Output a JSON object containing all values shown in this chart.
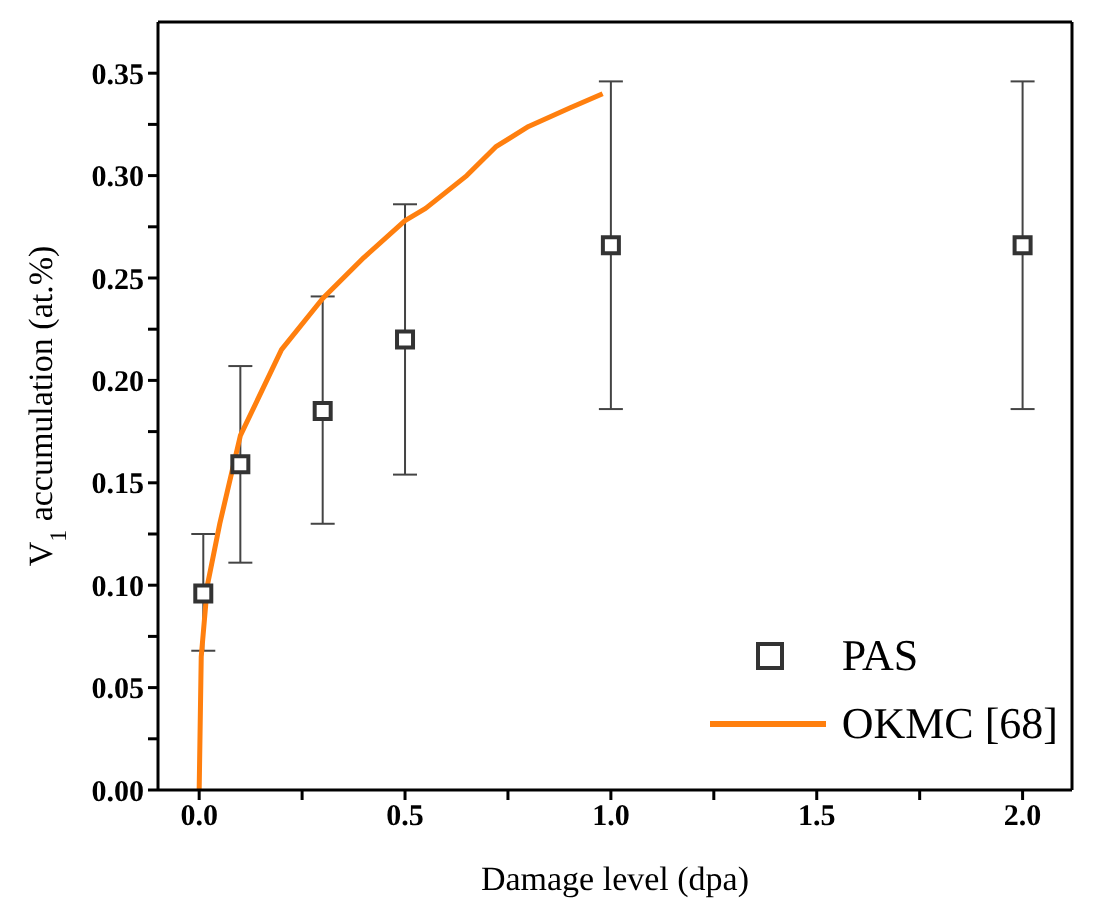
{
  "chart_data": {
    "type": "scatter",
    "xlabel": "Damage level (dpa)",
    "ylabel": "V$_{1}$ accumulation (at.%)",
    "xlim": [
      -0.1,
      2.12
    ],
    "xticks": [
      {
        "value": 0,
        "label": "0.0"
      },
      {
        "value": 0.25,
        "label": null
      },
      {
        "value": 0.5,
        "label": "0.5"
      },
      {
        "value": 0.75,
        "label": null
      },
      {
        "value": 1,
        "label": "1.0"
      },
      {
        "value": 1.25,
        "label": null
      },
      {
        "value": 1.5,
        "label": "1.5"
      },
      {
        "value": 1.75,
        "label": null
      },
      {
        "value": 2,
        "label": "2.0"
      }
    ],
    "ylim": [
      0,
      0.375
    ],
    "yticks": [
      {
        "value": 0,
        "label": "0.00"
      },
      {
        "value": 0.025,
        "label": null
      },
      {
        "value": 0.05,
        "label": "0.05"
      },
      {
        "value": 0.075,
        "label": null
      },
      {
        "value": 0.1,
        "label": "0.10"
      },
      {
        "value": 0.125,
        "label": null
      },
      {
        "value": 0.15,
        "label": "0.15"
      },
      {
        "value": 0.175,
        "label": null
      },
      {
        "value": 0.2,
        "label": "0.20"
      },
      {
        "value": 0.225,
        "label": null
      },
      {
        "value": 0.25,
        "label": "0.25"
      },
      {
        "value": 0.275,
        "label": null
      },
      {
        "value": 0.3,
        "label": "0.30"
      },
      {
        "value": 0.325,
        "label": null
      },
      {
        "value": 0.35,
        "label": "0.35"
      }
    ],
    "legend": "bottom right",
    "grid": false,
    "series": [
      {
        "name": "PAS",
        "marker": "square",
        "color": "#333333",
        "x": [
          0.01,
          0.1,
          0.3,
          0.5,
          1.0,
          2.0
        ],
        "values": [
          0.096,
          0.159,
          0.185,
          0.22,
          0.266,
          0.266
        ],
        "errors": [
          [
            0.068,
            0.125
          ],
          [
            0.111,
            0.207
          ],
          [
            0.13,
            0.241
          ],
          [
            0.154,
            0.286
          ],
          [
            0.186,
            0.346
          ],
          [
            0.186,
            0.346
          ]
        ]
      },
      {
        "name": "OKMC [68]",
        "type": "line",
        "marker": "none",
        "line_style": "solid",
        "color": "#ff7f0e",
        "x": [
          0,
          0.005,
          0.02,
          0.05,
          0.1,
          0.2,
          0.3,
          0.4,
          0.5,
          0.55,
          0.65,
          0.72,
          0.8,
          0.9,
          0.98
        ],
        "values": [
          0,
          0.065,
          0.1,
          0.13,
          0.173,
          0.215,
          0.24,
          0.26,
          0.278,
          0.284,
          0.3,
          0.314,
          0.324,
          0.333,
          0.34
        ]
      }
    ]
  }
}
